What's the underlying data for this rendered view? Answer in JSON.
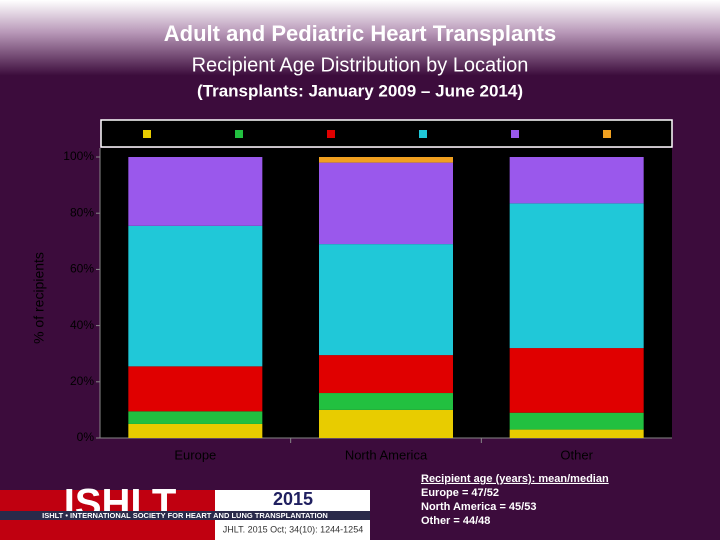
{
  "chart_data": {
    "type": "stacked_bar",
    "title": "Adult and Pediatric Heart Transplants",
    "subtitle": "Recipient Age Distribution by Location",
    "period": "(Transplants: January 2009 – June 2014)",
    "y_label": "% of recipients",
    "categories": [
      "Europe",
      "North America",
      "Other"
    ],
    "series": [
      {
        "color": "#e8cc00",
        "values": [
          5,
          10,
          3
        ]
      },
      {
        "color": "#22c040",
        "values": [
          4.5,
          6,
          6
        ]
      },
      {
        "color": "#e00000",
        "values": [
          16,
          13.5,
          23
        ]
      },
      {
        "color": "#20c8d8",
        "values": [
          50,
          39.5,
          51.5
        ]
      },
      {
        "color": "#9a58ec",
        "values": [
          24.5,
          29,
          16.5
        ]
      },
      {
        "color": "#f0a020",
        "values": [
          0,
          2,
          0
        ]
      }
    ],
    "ylim": [
      0,
      100
    ],
    "yticks": [
      {
        "value": 0,
        "label": "0%"
      },
      {
        "value": 20,
        "label": "20%"
      },
      {
        "value": 40,
        "label": "40%"
      },
      {
        "value": 60,
        "label": "60%"
      },
      {
        "value": 80,
        "label": "80%"
      },
      {
        "value": 100,
        "label": "100%"
      }
    ],
    "note": [
      "Recipient age (years): mean/median",
      "Europe = 47/52",
      "North America = 45/53",
      "Other = 44/48"
    ],
    "logo": "ISHLT",
    "society": "ISHLT • INTERNATIONAL SOCIETY FOR HEART AND LUNG TRANSPLANTATION",
    "year": "2015",
    "citation": "JHLT. 2015 Oct; 34(10): 1244-1254"
  }
}
